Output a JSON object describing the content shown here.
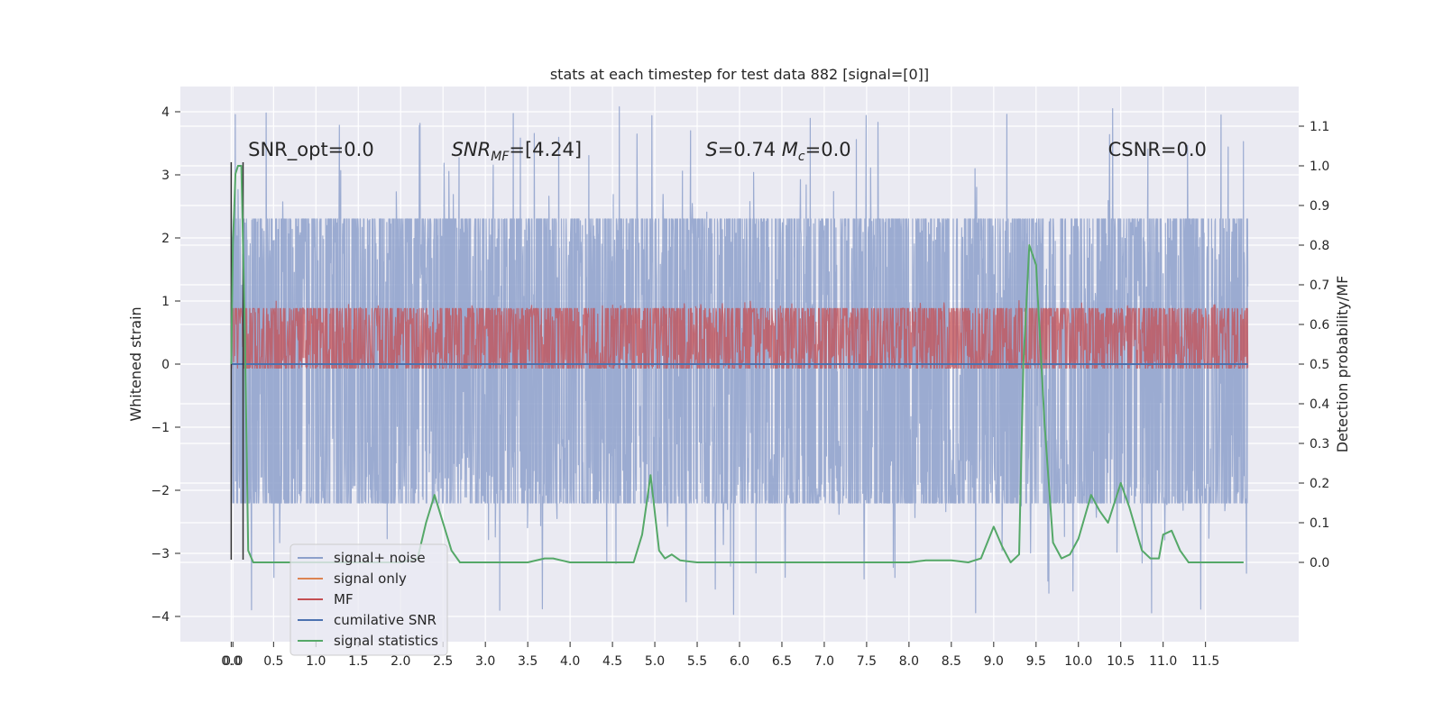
{
  "chart_data": {
    "type": "line",
    "title": "stats at each timestep for test data 882 [signal=[0]]",
    "xlabel": "",
    "ylabel": "Whitened strain",
    "ylabel_right": "Detection probability/MF",
    "xlim": [
      -0.6,
      12.6
    ],
    "ylim": [
      -4.4,
      4.4
    ],
    "ylim_right": [
      -0.2,
      1.2
    ],
    "x_ticks": [
      "0.0",
      "0.0",
      "0.5",
      "1.0",
      "1.5",
      "2.0",
      "2.5",
      "3.0",
      "3.5",
      "4.0",
      "4.5",
      "5.0",
      "5.5",
      "6.0",
      "6.5",
      "7.0",
      "7.5",
      "8.0",
      "8.5",
      "9.0",
      "9.5",
      "10.0",
      "10.5",
      "11.0",
      "11.5"
    ],
    "x_tick_values": [
      0.0,
      0.02,
      0.5,
      1.0,
      1.5,
      2.0,
      2.5,
      3.0,
      3.5,
      4.0,
      4.5,
      5.0,
      5.5,
      6.0,
      6.5,
      7.0,
      7.5,
      8.0,
      8.5,
      9.0,
      9.5,
      10.0,
      10.5,
      11.0,
      11.5
    ],
    "y_ticks": [
      "−4",
      "−3",
      "−2",
      "−1",
      "0",
      "1",
      "2",
      "3",
      "4"
    ],
    "y_tick_values": [
      -4,
      -3,
      -2,
      -1,
      0,
      1,
      2,
      3,
      4
    ],
    "y_right_ticks": [
      "0.0",
      "0.1",
      "0.2",
      "0.3",
      "0.4",
      "0.5",
      "0.6",
      "0.7",
      "0.8",
      "0.9",
      "1.0",
      "1.1"
    ],
    "y_right_tick_values": [
      0.0,
      0.1,
      0.2,
      0.3,
      0.4,
      0.5,
      0.6,
      0.7,
      0.8,
      0.9,
      1.0,
      1.1
    ],
    "grid": true,
    "legend_position": "lower-left",
    "annotations": [
      {
        "id": "snr-opt",
        "text": "SNR_opt=0.0",
        "x": 0.2,
        "y": 3.3
      },
      {
        "id": "snr-mf",
        "text": "SNR_MF=[4.24]",
        "x": 2.6,
        "y": 3.3
      },
      {
        "id": "s-mc",
        "text": "S=0.74   M_c=0.0",
        "x": 5.6,
        "y": 3.3
      },
      {
        "id": "csnr",
        "text": "CSNR=0.0",
        "x": 10.35,
        "y": 3.3
      }
    ],
    "series": [
      {
        "name": "signal+ noise",
        "color": "#8da0cb",
        "axis": "left",
        "style": "noise",
        "x_range": [
          0.0,
          12.0
        ],
        "band": [
          -2.2,
          2.3
        ],
        "peak_band": [
          -4.0,
          4.1
        ]
      },
      {
        "name": "signal only",
        "color": "#dd8452",
        "axis": "left",
        "style": "flat",
        "x": [
          0.0,
          12.0
        ],
        "y": [
          0.0,
          0.0
        ]
      },
      {
        "name": "MF",
        "color": "#c44e52",
        "axis": "right",
        "style": "noise",
        "x_range": [
          0.0,
          12.0
        ],
        "band": [
          0.49,
          0.64
        ],
        "peak_band": [
          0.49,
          0.66
        ]
      },
      {
        "name": "cumilative SNR",
        "color": "#4c72b0",
        "axis": "left",
        "style": "flat",
        "x": [
          0.0,
          12.0
        ],
        "y": [
          0.0,
          0.0
        ]
      },
      {
        "name": "signal statistics",
        "color": "#55a868",
        "axis": "right",
        "style": "line",
        "x": [
          0.0,
          0.02,
          0.05,
          0.08,
          0.12,
          0.16,
          0.2,
          0.26,
          0.32,
          0.5,
          1.0,
          1.5,
          2.0,
          2.2,
          2.3,
          2.4,
          2.5,
          2.6,
          2.7,
          2.8,
          3.0,
          3.5,
          3.7,
          3.8,
          3.9,
          4.0,
          4.5,
          4.75,
          4.85,
          4.95,
          5.05,
          5.12,
          5.2,
          5.3,
          5.5,
          6.0,
          7.0,
          8.0,
          8.2,
          8.5,
          8.7,
          8.85,
          9.0,
          9.1,
          9.2,
          9.3,
          9.35,
          9.42,
          9.5,
          9.6,
          9.7,
          9.8,
          9.9,
          10.0,
          10.15,
          10.25,
          10.35,
          10.5,
          10.6,
          10.75,
          10.85,
          10.95,
          11.0,
          11.1,
          11.2,
          11.3,
          11.5,
          11.95
        ],
        "y": [
          0.5,
          0.8,
          0.98,
          1.0,
          1.0,
          0.6,
          0.03,
          0.0,
          0.0,
          0.0,
          0.0,
          0.0,
          0.0,
          0.01,
          0.1,
          0.17,
          0.1,
          0.03,
          0.0,
          0.0,
          0.0,
          0.0,
          0.01,
          0.01,
          0.005,
          0.0,
          0.0,
          0.0,
          0.07,
          0.22,
          0.03,
          0.01,
          0.02,
          0.005,
          0.0,
          0.0,
          0.0,
          0.0,
          0.005,
          0.005,
          0.0,
          0.01,
          0.09,
          0.04,
          0.0,
          0.02,
          0.5,
          0.8,
          0.75,
          0.35,
          0.05,
          0.01,
          0.02,
          0.06,
          0.17,
          0.13,
          0.1,
          0.2,
          0.14,
          0.03,
          0.01,
          0.01,
          0.07,
          0.08,
          0.03,
          0.0,
          0.0,
          0.0
        ]
      }
    ],
    "markers": [
      {
        "type": "vline",
        "color": "#333333",
        "x": 0.0,
        "y_range": [
          -3.1,
          3.2
        ]
      },
      {
        "type": "vline",
        "color": "#333333",
        "x": 0.14,
        "y_range": [
          -3.1,
          3.2
        ]
      }
    ]
  }
}
